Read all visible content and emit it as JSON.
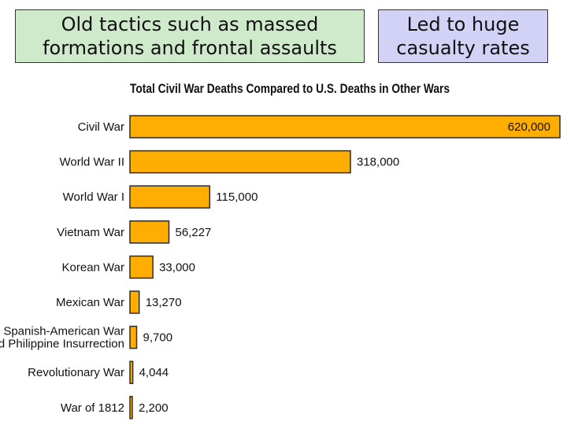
{
  "callouts": {
    "left": [
      "Old tactics such as massed",
      "formations and frontal assaults"
    ],
    "right": [
      "Led to huge",
      "casualty rates"
    ]
  },
  "chart_data": {
    "type": "bar",
    "orientation": "horizontal",
    "title": "Total Civil War Deaths Compared to U.S. Deaths in Other Wars",
    "xlim": [
      0,
      620000
    ],
    "grid": false,
    "bar_color": "#ffae00",
    "categories": [
      [
        "Civil War"
      ],
      [
        "World War II"
      ],
      [
        "World War I"
      ],
      [
        "Vietnam War"
      ],
      [
        "Korean War"
      ],
      [
        "Mexican War"
      ],
      [
        "Spanish-American War",
        "and Philippine Insurrection"
      ],
      [
        "Revolutionary War"
      ],
      [
        "War of 1812"
      ]
    ],
    "values": [
      620000,
      318000,
      115000,
      56227,
      33000,
      13270,
      9700,
      4044,
      2200
    ],
    "value_labels": [
      "620,000",
      "318,000",
      "115,000",
      "56,227",
      "33,000",
      "13,270",
      "9,700",
      "4,044",
      "2,200"
    ]
  }
}
